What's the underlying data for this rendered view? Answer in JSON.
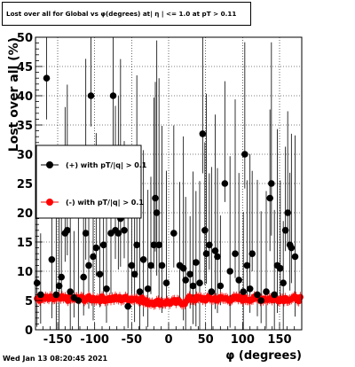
{
  "chart_data": {
    "type": "scatter",
    "title": "Lost over all for Global vs φ(degrees) at| η | <= 1.0 at pT > 0.11",
    "xlabel": "φ (degrees)",
    "ylabel": "Lost over all (%)",
    "xlim": [
      -180,
      180
    ],
    "ylim": [
      0,
      50
    ],
    "x_ticks": [
      -150,
      -100,
      -50,
      0,
      50,
      100,
      150
    ],
    "y_ticks": [
      0,
      5,
      10,
      15,
      20,
      25,
      30,
      35,
      40,
      45,
      50
    ],
    "grid": true,
    "legend_placement": "left-middle",
    "series": [
      {
        "name": "(+) with pT/|q| > 0.1",
        "color": "#000000",
        "marker": "circle",
        "points": [
          [
            -178,
            8
          ],
          [
            -173,
            6
          ],
          [
            -165,
            43
          ],
          [
            -158,
            12
          ],
          [
            -152,
            6
          ],
          [
            -148,
            7.5
          ],
          [
            -145,
            9
          ],
          [
            -140,
            16.5
          ],
          [
            -137,
            17
          ],
          [
            -133,
            6.5
          ],
          [
            -128,
            5.5
          ],
          [
            -122,
            5
          ],
          [
            -115,
            9
          ],
          [
            -112,
            16.5
          ],
          [
            -108,
            11
          ],
          [
            -105,
            40
          ],
          [
            -102,
            12.5
          ],
          [
            -98,
            14
          ],
          [
            -93,
            9.5
          ],
          [
            -88,
            14.5
          ],
          [
            -84,
            7
          ],
          [
            -78,
            16.5
          ],
          [
            -75,
            40
          ],
          [
            -72,
            17
          ],
          [
            -68,
            16.5
          ],
          [
            -65,
            19
          ],
          [
            -60,
            17
          ],
          [
            -55,
            4
          ],
          [
            -50,
            11
          ],
          [
            -46,
            9.5
          ],
          [
            -43,
            14.5
          ],
          [
            -39,
            6.5
          ],
          [
            -34,
            12
          ],
          [
            -28,
            7
          ],
          [
            -24,
            11
          ],
          [
            -20,
            14.5
          ],
          [
            -18,
            22.5
          ],
          [
            -16,
            20
          ],
          [
            -13,
            14.5
          ],
          [
            -9,
            11
          ],
          [
            -3,
            8
          ],
          [
            7,
            16.5
          ],
          [
            15,
            11
          ],
          [
            20,
            10.5
          ],
          [
            23,
            8.5
          ],
          [
            29,
            9.5
          ],
          [
            33,
            7.5
          ],
          [
            37,
            11.5
          ],
          [
            42,
            8
          ],
          [
            46,
            33.5
          ],
          [
            49,
            17
          ],
          [
            51,
            13
          ],
          [
            55,
            14.5
          ],
          [
            58,
            6.5
          ],
          [
            63,
            13.5
          ],
          [
            66,
            12.5
          ],
          [
            70,
            7.5
          ],
          [
            76,
            25
          ],
          [
            83,
            10
          ],
          [
            90,
            13
          ],
          [
            95,
            8.5
          ],
          [
            101,
            6.5
          ],
          [
            103,
            30
          ],
          [
            106,
            11
          ],
          [
            110,
            7
          ],
          [
            113,
            13
          ],
          [
            120,
            6
          ],
          [
            125,
            5
          ],
          [
            132,
            6.5
          ],
          [
            137,
            22.5
          ],
          [
            139,
            25
          ],
          [
            143,
            6
          ],
          [
            147,
            11
          ],
          [
            151,
            10.5
          ],
          [
            155,
            8
          ],
          [
            158,
            17
          ],
          [
            161,
            20
          ],
          [
            164,
            14.5
          ],
          [
            166,
            14
          ],
          [
            171,
            12.5
          ]
        ]
      },
      {
        "name": "(-) with pT/|q| > 0.1",
        "color": "#ff0000",
        "marker": "circle",
        "mean_level": 5.3
      }
    ]
  },
  "footer": {
    "timestamp": "Wed Jan 13 08:20:45 2021"
  }
}
